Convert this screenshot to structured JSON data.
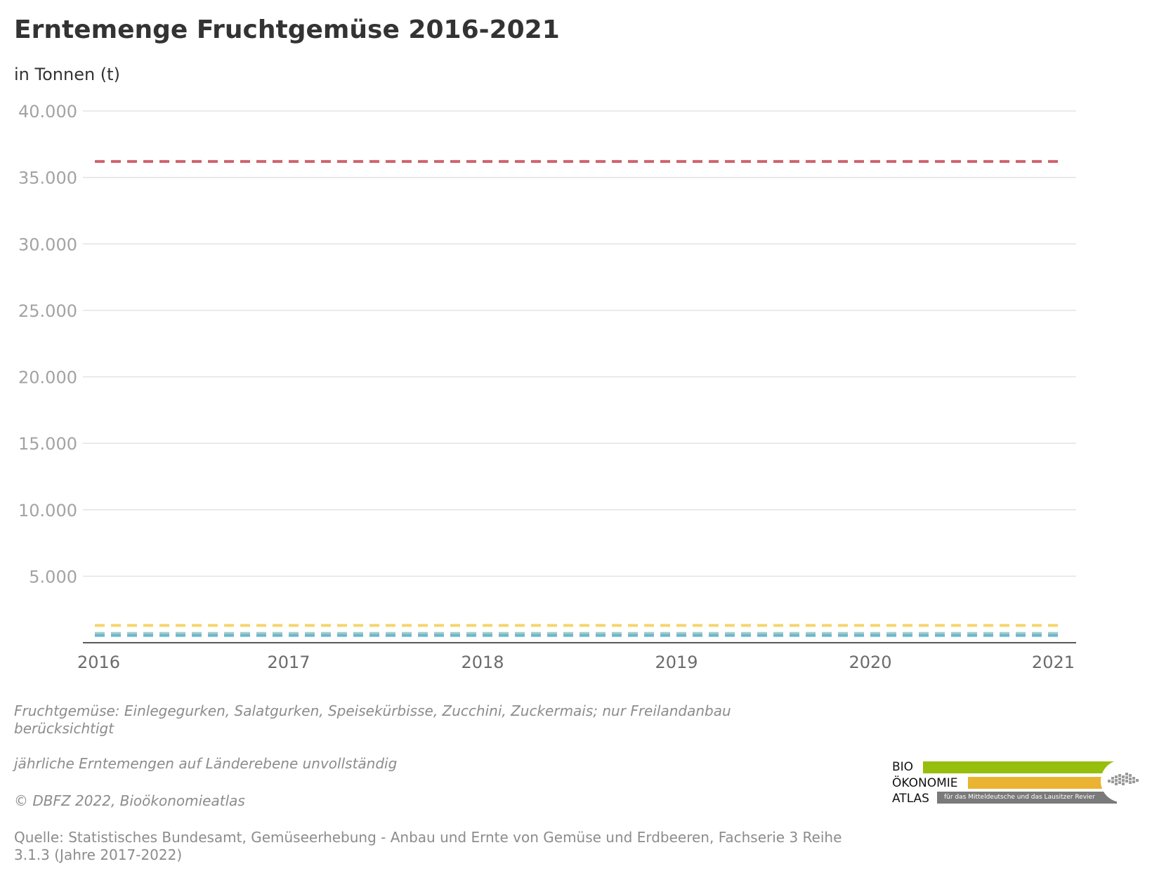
{
  "title": "Erntemenge Fruchtgemüse 2016-2021",
  "subtitle": "in Tonnen (t)",
  "notes": {
    "line1": "Fruchtgemüse: Einlegegurken, Salatgurken, Speisekürbisse, Zucchini, Zuckermais; nur Freilandanbau berücksichtigt",
    "line2": "jährliche Erntemengen auf Länderebene unvollständig",
    "copyright": "© DBFZ 2022, Bioökonomieatlas",
    "source": "Quelle: Statistisches Bundesamt, Gemüseerhebung - Anbau und Ernte von Gemüse und Erdbeeren, Fachserie 3 Reihe 3.1.3 (Jahre 2017-2022)"
  },
  "logo": {
    "word1": "BIO",
    "word2": "ÖKONOMIE",
    "word3": "ATLAS",
    "tagline": "für das Mitteldeutsche und das Lausitzer Revier",
    "colors": {
      "green": "#95be0d",
      "yellow": "#ebb332",
      "gray": "#7a7a7a"
    }
  },
  "chart_data": {
    "type": "line",
    "line_style": "dashed",
    "x": [
      2016,
      2017,
      2018,
      2019,
      2020,
      2021
    ],
    "x_tick_labels": [
      "2016",
      "2017",
      "2018",
      "2019",
      "2020",
      "2021"
    ],
    "y_tick_values": [
      5000,
      10000,
      15000,
      20000,
      25000,
      30000,
      35000,
      40000
    ],
    "y_tick_labels": [
      "5.000",
      "10.000",
      "15.000",
      "20.000",
      "25.000",
      "30.000",
      "35.000",
      "40.000"
    ],
    "ylim": [
      0,
      40000
    ],
    "grid": "horizontal",
    "legend": "none",
    "series": [
      {
        "color": "#d0616f",
        "values": [
          36200,
          36200,
          36200,
          36200,
          36200,
          36200
        ]
      },
      {
        "color": "#f6d56a",
        "values": [
          1300,
          1300,
          1300,
          1300,
          1300,
          1300
        ]
      },
      {
        "color": "#9ed0c4",
        "values": [
          700,
          700,
          700,
          700,
          700,
          700
        ]
      },
      {
        "color": "#6fb6cf",
        "values": [
          550,
          550,
          550,
          550,
          550,
          550
        ]
      }
    ]
  }
}
